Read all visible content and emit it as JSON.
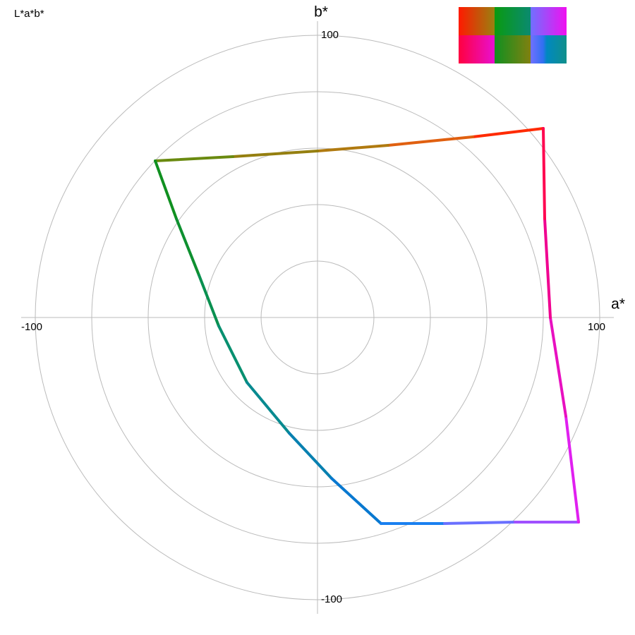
{
  "chart_data": {
    "type": "line",
    "title": "L*a*b*",
    "xlabel": "a*",
    "ylabel": "b*",
    "xlim": [
      -100,
      100
    ],
    "ylim": [
      -100,
      100
    ],
    "xticks": [
      -100,
      100
    ],
    "yticks": [
      -100,
      100
    ],
    "grid_rings": [
      20,
      40,
      60,
      80,
      100
    ],
    "x": [
      80,
      55,
      25,
      0,
      -30,
      -57.5,
      -50,
      -42,
      -35,
      -25,
      -10,
      5,
      22.5,
      45,
      70,
      92.5,
      88,
      82.5,
      80.5
    ],
    "values": [
      67,
      64,
      61,
      59,
      57,
      55.5,
      35,
      15,
      -3,
      -23,
      -41,
      -57,
      -73,
      -73,
      -72.5,
      -72.5,
      -35,
      0,
      35
    ],
    "colors": [
      "#ff2a00",
      "#e06010",
      "#b07a10",
      "#957f10",
      "#6a8a10",
      "#109020",
      "#0e9030",
      "#0a9050",
      "#089070",
      "#088a90",
      "#0880b0",
      "#0878d0",
      "#1a80f0",
      "#6a70ff",
      "#a050ff",
      "#e020f0",
      "#e810c0",
      "#f00090",
      "#ff0550"
    ]
  }
}
